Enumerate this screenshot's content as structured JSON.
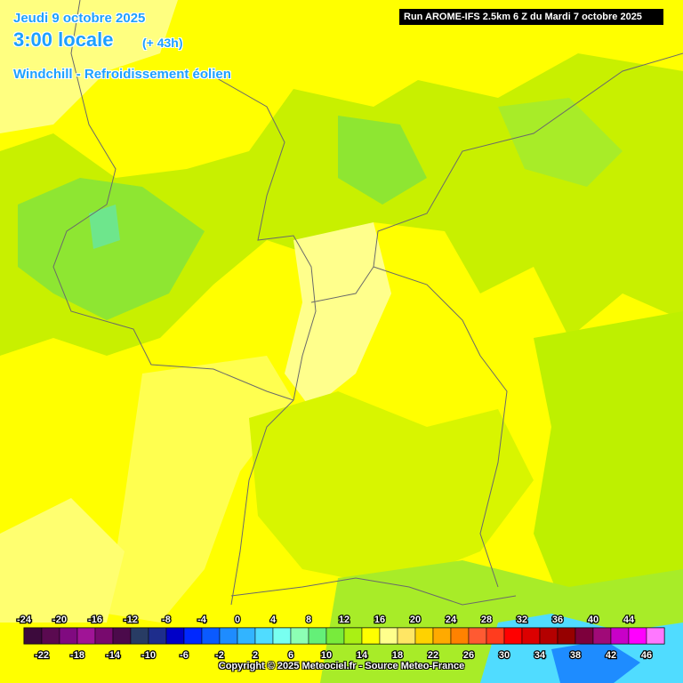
{
  "header": {
    "date": "Jeudi 9 octobre 2025",
    "time": "3:00 locale",
    "offset": "(+ 43h)",
    "parameter": "Windchill - Refroidissement éolien",
    "run": "Run AROME-IFS 2.5km 6 Z du Mardi 7 octobre 2025"
  },
  "legend": {
    "ticks": [
      -24,
      -22,
      -20,
      -18,
      -16,
      -14,
      -12,
      -10,
      -8,
      -6,
      -4,
      -2,
      0,
      2,
      4,
      6,
      8,
      10,
      12,
      14,
      16,
      18,
      20,
      22,
      24,
      26,
      28,
      30,
      32,
      34,
      36,
      38,
      40,
      42,
      44,
      46
    ],
    "colors": [
      "#3c0a3c",
      "#5a0a50",
      "#800a80",
      "#a01496",
      "#780a6e",
      "#4b0a4b",
      "#283c64",
      "#1e2d8c",
      "#0000c8",
      "#0028ff",
      "#0a5aff",
      "#1e8cff",
      "#32b4ff",
      "#50dcff",
      "#78fff0",
      "#8cffb4",
      "#64f078",
      "#78eb3c",
      "#aaf014",
      "#ffff00",
      "#ffff8c",
      "#ffe664",
      "#ffd200",
      "#ffaa00",
      "#ff8200",
      "#ff5a32",
      "#ff3c1e",
      "#ff0000",
      "#dc0000",
      "#b40000",
      "#960000",
      "#7d003c",
      "#a00a78",
      "#c800c8",
      "#ff00ff",
      "#ff78ff"
    ]
  },
  "footer": {
    "copyright": "Copyright © 2025 Meteociel.fr - Source Meteo-France"
  }
}
